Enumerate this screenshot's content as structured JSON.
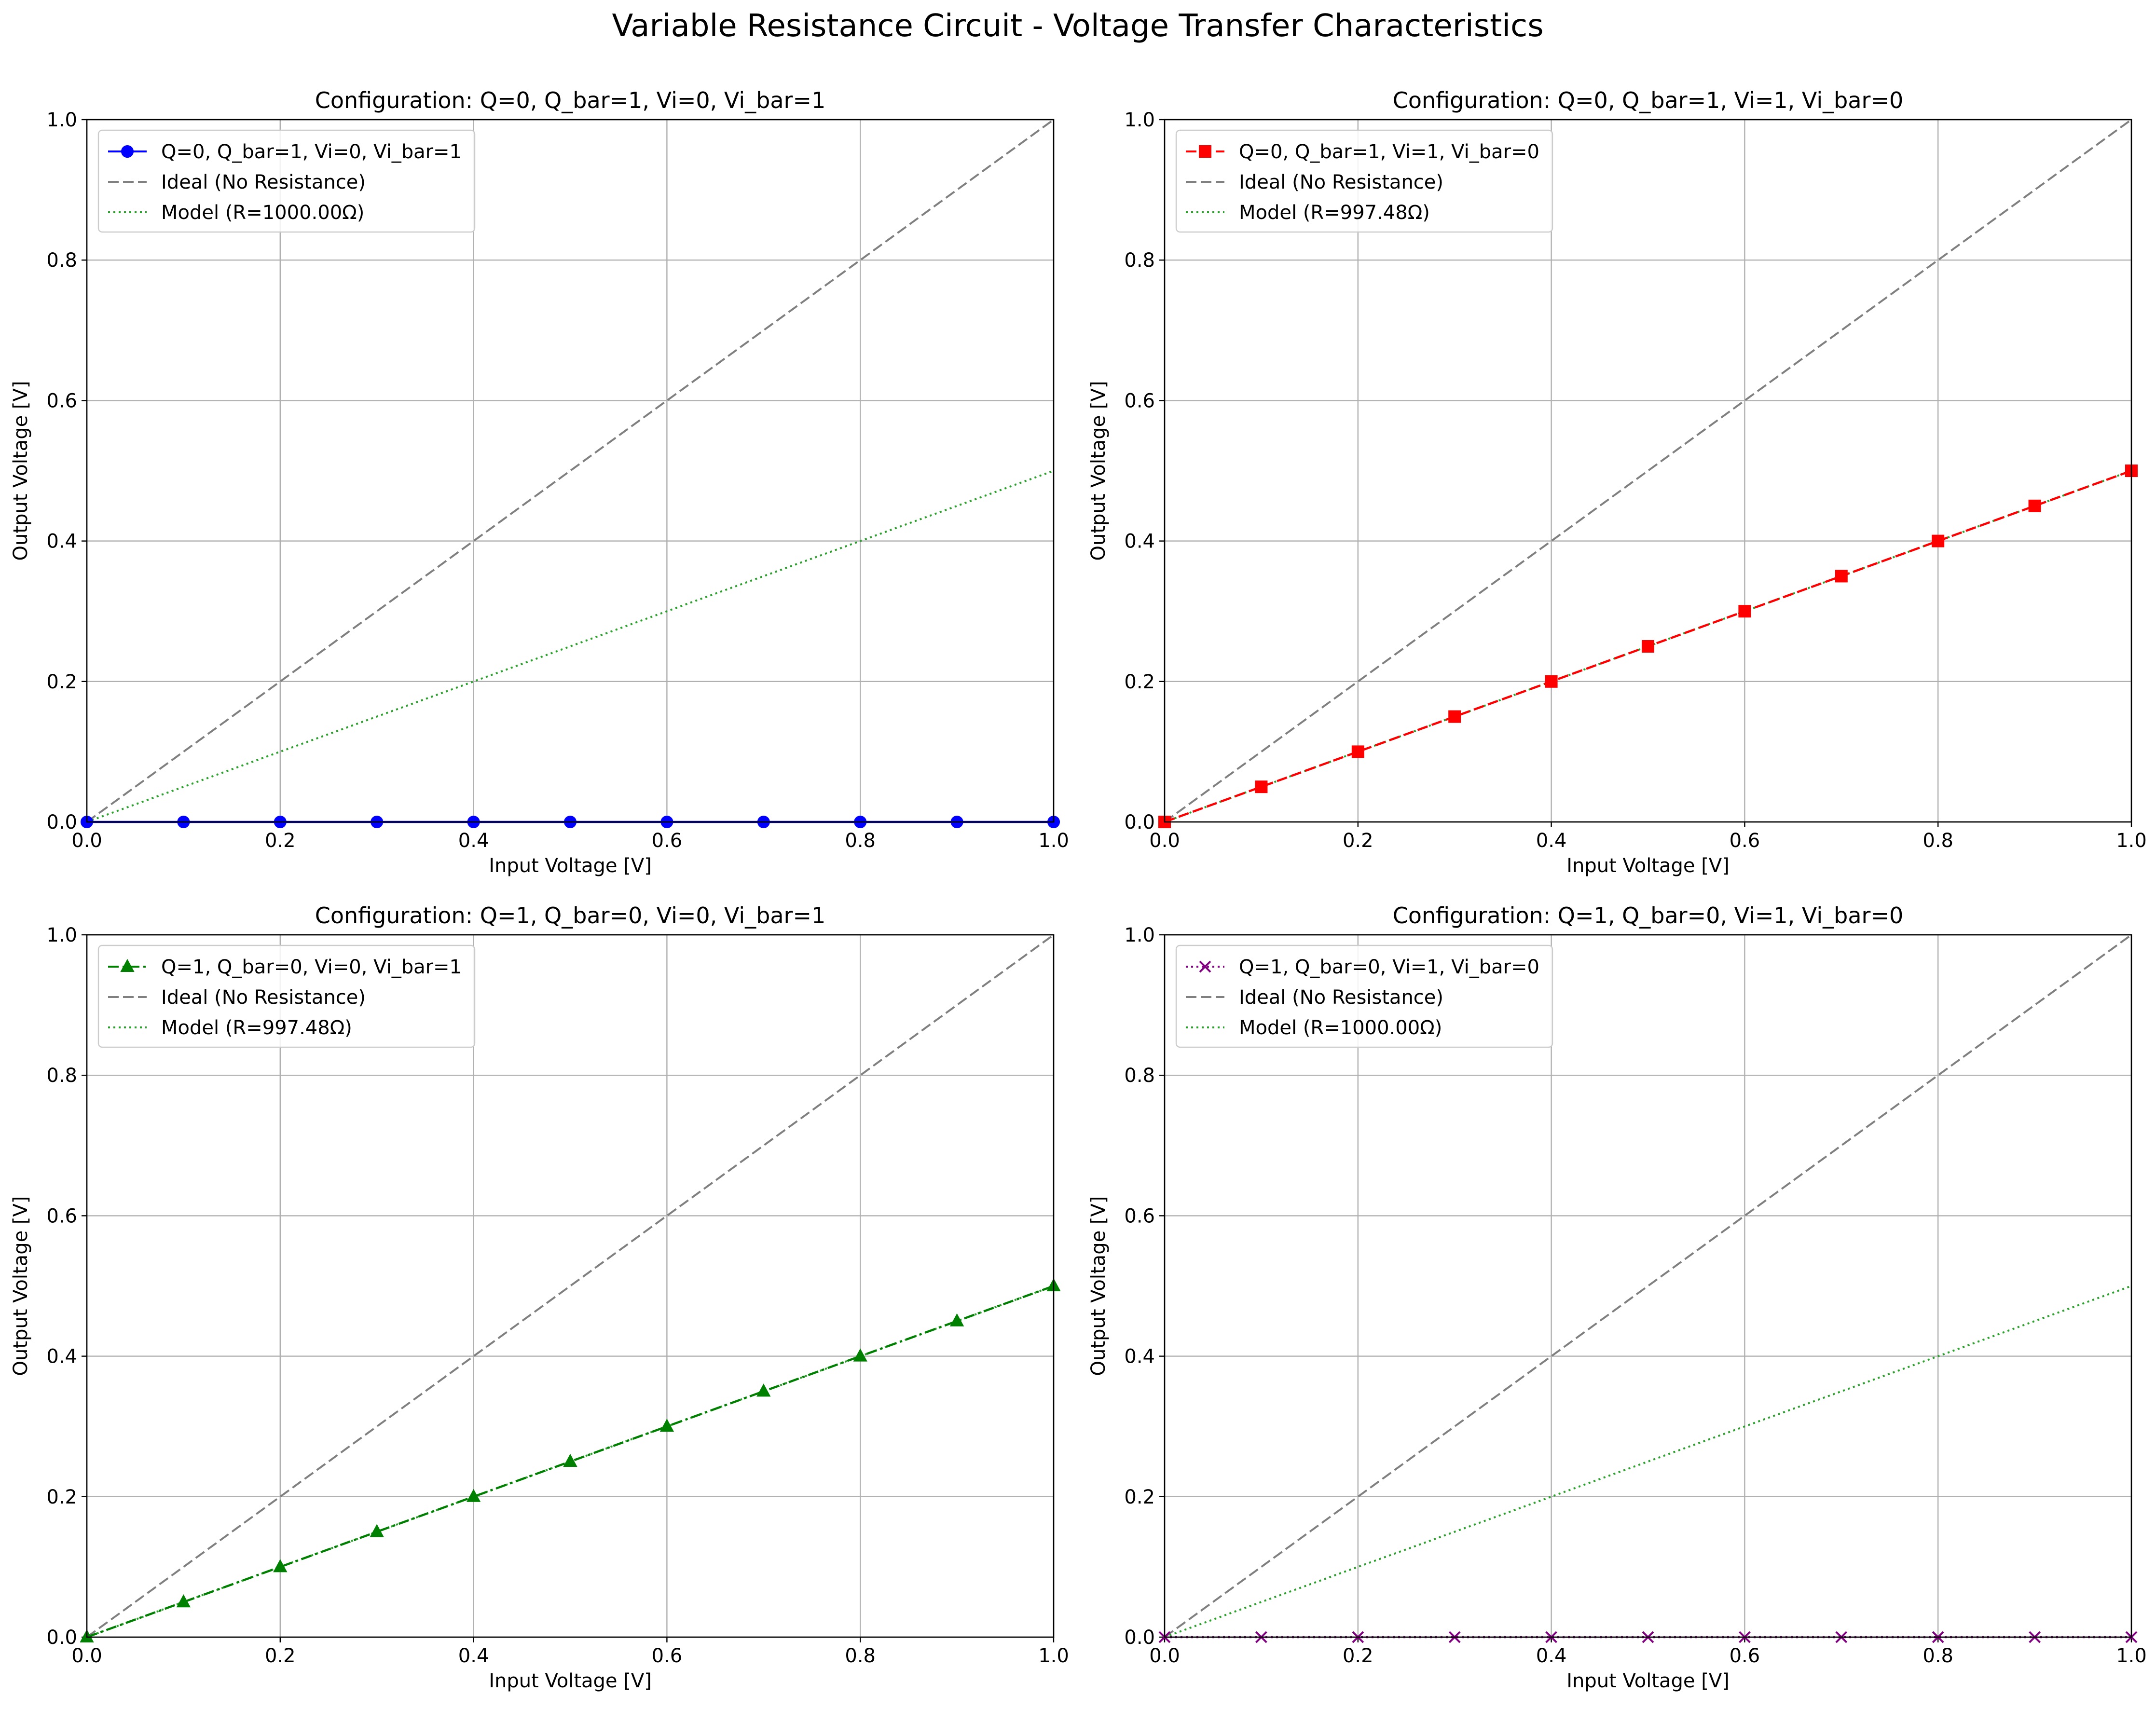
{
  "figure_title": "Variable Resistance Circuit - Voltage Transfer Characteristics",
  "colors": {
    "ideal": "#808080",
    "model": "#2ca02c",
    "grid": "#b0b0b0",
    "axis": "#000000"
  },
  "chart_data": [
    {
      "type": "line",
      "title": "Configuration: Q=0, Q_bar=1, Vi=0, Vi_bar=1",
      "xlabel": "Input Voltage [V]",
      "ylabel": "Output Voltage [V]",
      "xlim": [
        0,
        1
      ],
      "ylim": [
        0,
        1
      ],
      "xticks": [
        "0.0",
        "0.2",
        "0.4",
        "0.6",
        "0.8",
        "1.0"
      ],
      "yticks": [
        "0.0",
        "0.2",
        "0.4",
        "0.6",
        "0.8",
        "1.0"
      ],
      "grid": true,
      "legend_position": "top-left",
      "x": [
        0.0,
        0.1,
        0.2,
        0.3,
        0.4,
        0.5,
        0.6,
        0.7,
        0.8,
        0.9,
        1.0
      ],
      "series": [
        {
          "name": "Q=0, Q_bar=1, Vi=0, Vi_bar=1",
          "values": [
            0,
            0,
            0,
            0,
            0,
            0,
            0,
            0,
            0,
            0,
            0
          ],
          "color": "#0000ff",
          "linestyle": "solid",
          "marker": "circle"
        },
        {
          "name": "Ideal (No Resistance)",
          "values": [
            0.0,
            1.0
          ],
          "x": [
            0,
            1
          ],
          "color": "#808080",
          "linestyle": "dashed",
          "marker": "none"
        },
        {
          "name": "Model (R=1000.00Ω)",
          "values": [
            0.0,
            0.5
          ],
          "x": [
            0,
            1
          ],
          "color": "#2ca02c",
          "linestyle": "dotted",
          "marker": "none"
        }
      ]
    },
    {
      "type": "line",
      "title": "Configuration: Q=0, Q_bar=1, Vi=1, Vi_bar=0",
      "xlabel": "Input Voltage [V]",
      "ylabel": "Output Voltage [V]",
      "xlim": [
        0,
        1
      ],
      "ylim": [
        0,
        1
      ],
      "xticks": [
        "0.0",
        "0.2",
        "0.4",
        "0.6",
        "0.8",
        "1.0"
      ],
      "yticks": [
        "0.0",
        "0.2",
        "0.4",
        "0.6",
        "0.8",
        "1.0"
      ],
      "grid": true,
      "legend_position": "top-left",
      "x": [
        0.0,
        0.1,
        0.2,
        0.3,
        0.4,
        0.5,
        0.6,
        0.7,
        0.8,
        0.9,
        1.0
      ],
      "series": [
        {
          "name": "Q=0, Q_bar=1, Vi=1, Vi_bar=0",
          "values": [
            0.0,
            0.05,
            0.1,
            0.15,
            0.2,
            0.25,
            0.3,
            0.35,
            0.4,
            0.45,
            0.5
          ],
          "color": "#ff0000",
          "linestyle": "dashed",
          "marker": "square"
        },
        {
          "name": "Ideal (No Resistance)",
          "values": [
            0.0,
            1.0
          ],
          "x": [
            0,
            1
          ],
          "color": "#808080",
          "linestyle": "dashed",
          "marker": "none"
        },
        {
          "name": "Model (R=997.48Ω)",
          "values": [
            0.0,
            0.5
          ],
          "x": [
            0,
            1
          ],
          "color": "#2ca02c",
          "linestyle": "dotted",
          "marker": "none"
        }
      ]
    },
    {
      "type": "line",
      "title": "Configuration: Q=1, Q_bar=0, Vi=0, Vi_bar=1",
      "xlabel": "Input Voltage [V]",
      "ylabel": "Output Voltage [V]",
      "xlim": [
        0,
        1
      ],
      "ylim": [
        0,
        1
      ],
      "xticks": [
        "0.0",
        "0.2",
        "0.4",
        "0.6",
        "0.8",
        "1.0"
      ],
      "yticks": [
        "0.0",
        "0.2",
        "0.4",
        "0.6",
        "0.8",
        "1.0"
      ],
      "grid": true,
      "legend_position": "top-left",
      "x": [
        0.0,
        0.1,
        0.2,
        0.3,
        0.4,
        0.5,
        0.6,
        0.7,
        0.8,
        0.9,
        1.0
      ],
      "series": [
        {
          "name": "Q=1, Q_bar=0, Vi=0, Vi_bar=1",
          "values": [
            0.0,
            0.05,
            0.1,
            0.15,
            0.2,
            0.25,
            0.3,
            0.35,
            0.4,
            0.45,
            0.5
          ],
          "color": "#008000",
          "linestyle": "dashdot",
          "marker": "triangle"
        },
        {
          "name": "Ideal (No Resistance)",
          "values": [
            0.0,
            1.0
          ],
          "x": [
            0,
            1
          ],
          "color": "#808080",
          "linestyle": "dashed",
          "marker": "none"
        },
        {
          "name": "Model (R=997.48Ω)",
          "values": [
            0.0,
            0.5
          ],
          "x": [
            0,
            1
          ],
          "color": "#2ca02c",
          "linestyle": "dotted",
          "marker": "none"
        }
      ]
    },
    {
      "type": "line",
      "title": "Configuration: Q=1, Q_bar=0, Vi=1, Vi_bar=0",
      "xlabel": "Input Voltage [V]",
      "ylabel": "Output Voltage [V]",
      "xlim": [
        0,
        1
      ],
      "ylim": [
        0,
        1
      ],
      "xticks": [
        "0.0",
        "0.2",
        "0.4",
        "0.6",
        "0.8",
        "1.0"
      ],
      "yticks": [
        "0.0",
        "0.2",
        "0.4",
        "0.6",
        "0.8",
        "1.0"
      ],
      "grid": true,
      "legend_position": "top-left",
      "x": [
        0.0,
        0.1,
        0.2,
        0.3,
        0.4,
        0.5,
        0.6,
        0.7,
        0.8,
        0.9,
        1.0
      ],
      "series": [
        {
          "name": "Q=1, Q_bar=0, Vi=1, Vi_bar=0",
          "values": [
            0,
            0,
            0,
            0,
            0,
            0,
            0,
            0,
            0,
            0,
            0
          ],
          "color": "#800080",
          "linestyle": "dotted",
          "marker": "x"
        },
        {
          "name": "Ideal (No Resistance)",
          "values": [
            0.0,
            1.0
          ],
          "x": [
            0,
            1
          ],
          "color": "#808080",
          "linestyle": "dashed",
          "marker": "none"
        },
        {
          "name": "Model (R=1000.00Ω)",
          "values": [
            0.0,
            0.5
          ],
          "x": [
            0,
            1
          ],
          "color": "#2ca02c",
          "linestyle": "dotted",
          "marker": "none"
        }
      ]
    }
  ]
}
